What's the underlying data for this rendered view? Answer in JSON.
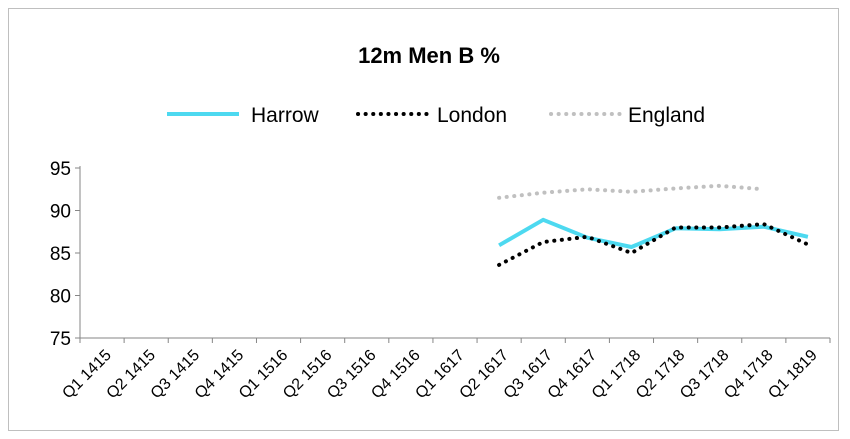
{
  "chart_data": {
    "type": "line",
    "title": "12m Men B %",
    "xlabel": "",
    "ylabel": "",
    "ylim": [
      75,
      95
    ],
    "yticks": [
      75,
      80,
      85,
      90,
      95
    ],
    "grid": false,
    "legend_position": "top",
    "categories": [
      "Q1 1415",
      "Q2 1415",
      "Q3 1415",
      "Q4 1415",
      "Q1 1516",
      "Q2 1516",
      "Q3 1516",
      "Q4 1516",
      "Q1 1617",
      "Q2 1617",
      "Q3 1617",
      "Q4 1617",
      "Q1 1718",
      "Q2 1718",
      "Q3 1718",
      "Q4 1718",
      "Q1 1819"
    ],
    "series": [
      {
        "name": "Harrow",
        "color": "#4dd9f0",
        "style": "solid",
        "values": [
          null,
          null,
          null,
          null,
          null,
          null,
          null,
          null,
          null,
          85.9,
          88.9,
          86.8,
          85.7,
          87.9,
          87.8,
          88.1,
          86.9
        ]
      },
      {
        "name": "London",
        "color": "#000000",
        "style": "dotted",
        "values": [
          null,
          null,
          null,
          null,
          null,
          null,
          null,
          null,
          null,
          83.6,
          86.3,
          86.9,
          85.0,
          88.0,
          88.0,
          88.4,
          86.0
        ]
      },
      {
        "name": "England",
        "color": "#c0c0c0",
        "style": "dotted",
        "values": [
          null,
          null,
          null,
          null,
          null,
          null,
          null,
          null,
          null,
          91.5,
          92.1,
          92.5,
          92.2,
          92.6,
          92.9,
          92.5,
          null
        ]
      }
    ]
  }
}
